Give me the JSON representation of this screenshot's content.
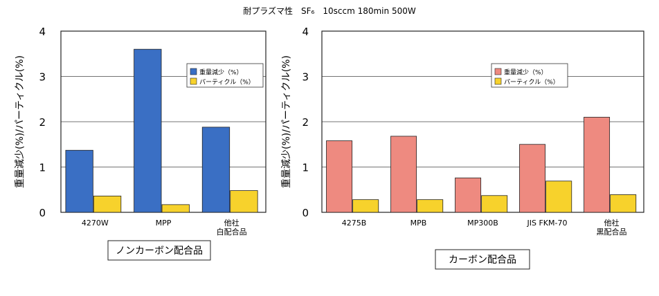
{
  "page_title": "耐プラズマ性　SF₆　10sccm 180min 500W",
  "chart_data": [
    {
      "type": "bar",
      "categories": [
        "4270W",
        "MPP",
        "他社\n白配合品"
      ],
      "series": [
        {
          "name": "重量減少（%）",
          "values": [
            1.37,
            3.6,
            1.88
          ],
          "color": "#3a6fc4"
        },
        {
          "name": "パーティクル（%）",
          "values": [
            0.36,
            0.17,
            0.48
          ],
          "color": "#f7d22c"
        }
      ],
      "ylabel": "重量減少(%)/パーティクル(%)",
      "ylim": [
        0,
        4
      ],
      "yticks": [
        "0",
        "1",
        "2",
        "3",
        "4"
      ],
      "grid": true,
      "legend": "top-right",
      "caption": "ノンカーボン配合品"
    },
    {
      "type": "bar",
      "categories": [
        "4275B",
        "MPB",
        "MP300B",
        "JIS FKM-70",
        "他社\n黒配合品"
      ],
      "series": [
        {
          "name": "重量減少（%）",
          "values": [
            1.58,
            1.68,
            0.76,
            1.5,
            2.1
          ],
          "color": "#ee8a80"
        },
        {
          "name": "パーティクル（%）",
          "values": [
            0.28,
            0.28,
            0.37,
            0.69,
            0.39
          ],
          "color": "#f7d22c"
        }
      ],
      "ylabel": "重量減少(%)/パーティクル(%)",
      "ylim": [
        0,
        4
      ],
      "yticks": [
        "0",
        "1",
        "2",
        "3",
        "4"
      ],
      "grid": true,
      "legend": "top-right",
      "caption": "カーボン配合品"
    }
  ]
}
